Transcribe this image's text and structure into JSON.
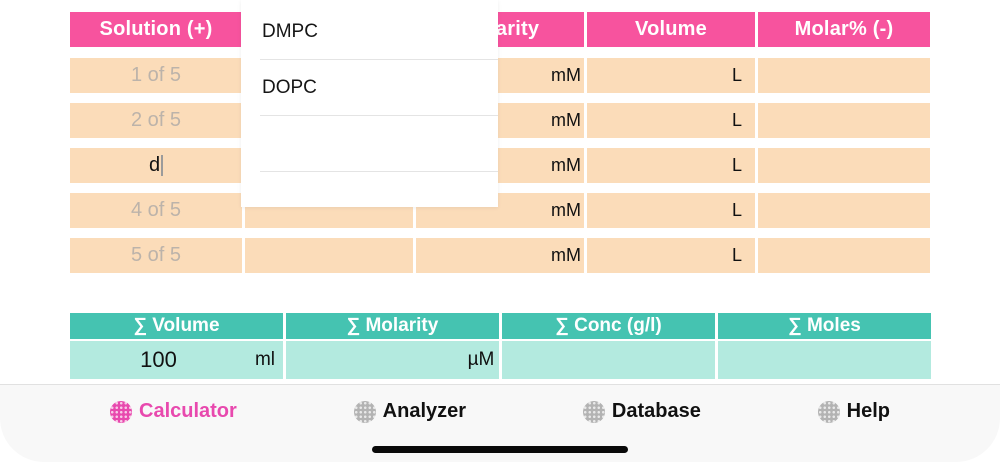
{
  "solution_table": {
    "headers": [
      "Solution (+)",
      "",
      "Molarity",
      "Volume",
      "Molar% (-)"
    ],
    "rows": [
      {
        "solution": "1 of 5",
        "name": "",
        "molarity": "",
        "molarity_unit": "mM",
        "volume": "",
        "volume_unit": "L",
        "molar_percent": ""
      },
      {
        "solution": "2 of 5",
        "name": "",
        "molarity": "",
        "molarity_unit": "mM",
        "volume": "",
        "volume_unit": "L",
        "molar_percent": ""
      },
      {
        "solution": "d",
        "name": "",
        "molarity": "",
        "molarity_unit": "mM",
        "volume": "",
        "volume_unit": "L",
        "molar_percent": ""
      },
      {
        "solution": "4 of 5",
        "name": "",
        "molarity": "",
        "molarity_unit": "mM",
        "volume": "",
        "volume_unit": "L",
        "molar_percent": ""
      },
      {
        "solution": "5 of 5",
        "name": "",
        "molarity": "",
        "molarity_unit": "mM",
        "volume": "",
        "volume_unit": "L",
        "molar_percent": ""
      }
    ]
  },
  "dropdown": {
    "items": [
      "DMPC",
      "DOPC",
      "",
      ""
    ]
  },
  "summary_table": {
    "headers": [
      "∑ Volume",
      "∑ Molarity",
      "∑ Conc (g/l)",
      "∑ Moles"
    ],
    "values": {
      "volume": "100",
      "volume_unit": "ml",
      "molarity": "",
      "molarity_unit": "µM",
      "conc": "",
      "moles": ""
    }
  },
  "tab_bar": {
    "tabs": [
      {
        "label": "Calculator",
        "active": true
      },
      {
        "label": "Analyzer",
        "active": false
      },
      {
        "label": "Database",
        "active": false
      },
      {
        "label": "Help",
        "active": false
      }
    ]
  },
  "colors": {
    "header_pink": "#F7539E",
    "cell_peach": "#FBDCB9",
    "summary_teal": "#45C3B1",
    "summary_teal_light": "#B3EADF",
    "active_tab_pink": "#E849AE"
  }
}
